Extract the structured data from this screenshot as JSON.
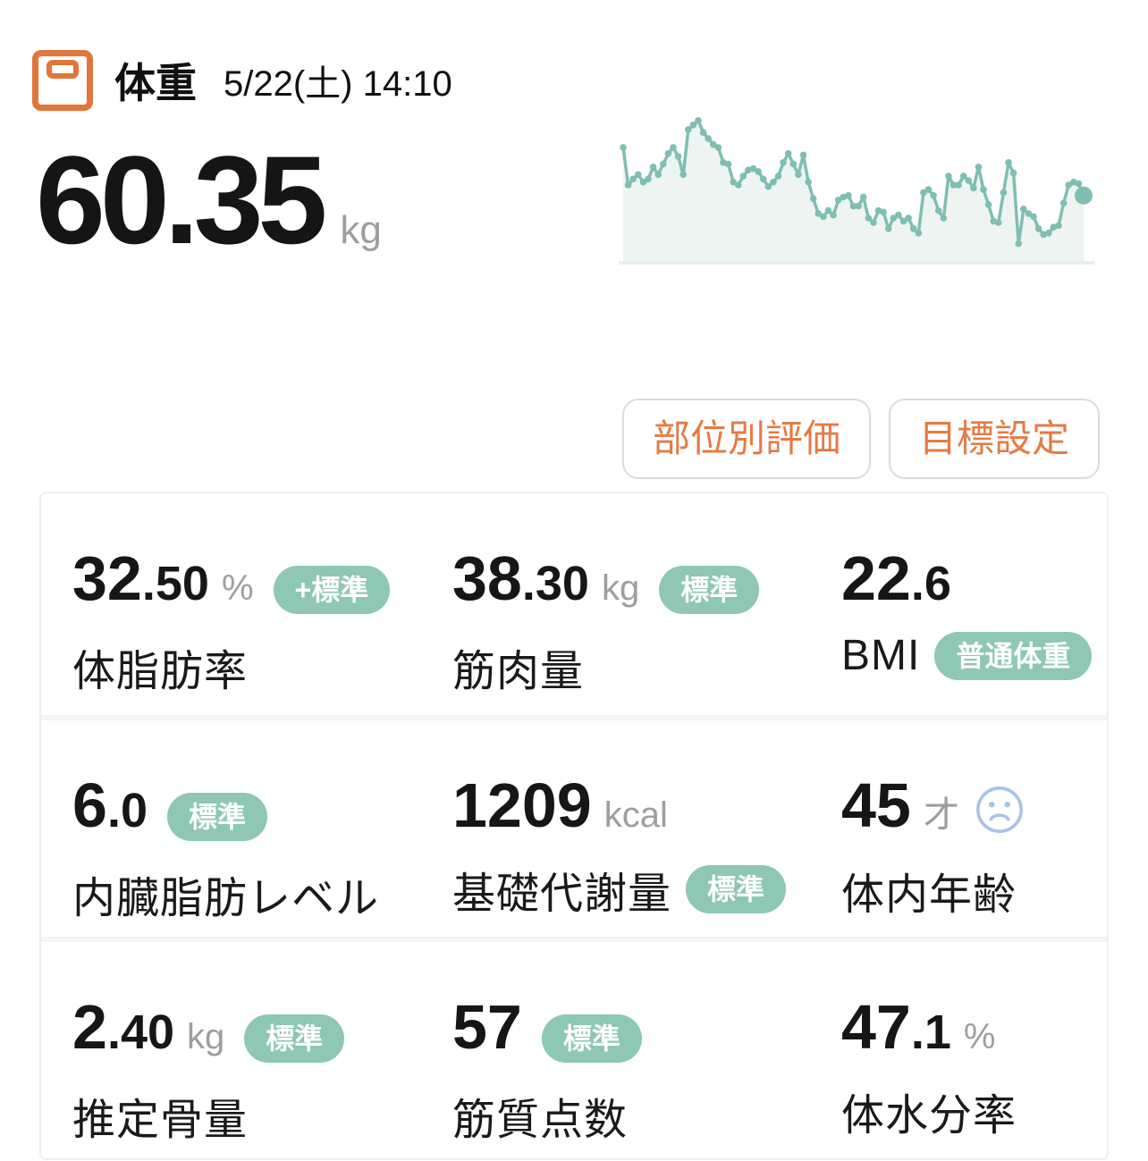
{
  "header": {
    "icon": "scale-icon",
    "title": "体重",
    "datetime": "5/22(土) 14:10"
  },
  "current_weight": {
    "value": "60.35",
    "unit": "kg"
  },
  "actions": {
    "evaluate_by_part": "部位別評価",
    "goal_setting": "目標設定"
  },
  "chart_data": {
    "type": "line",
    "title": "",
    "xlabel": "",
    "ylabel": "",
    "legend": false,
    "grid": false,
    "y_scale": "relative 0-100 (sparkline shown without axes or tick labels)",
    "style": {
      "line_color": "#7fbeb2",
      "fill_color": "#eef4f2",
      "baseline_color": "#e8efec",
      "point_radius": 3.8,
      "last_point_radius": 10
    },
    "values": [
      72,
      47,
      51,
      54,
      49,
      51,
      59,
      54,
      61,
      68,
      72,
      66,
      54,
      84,
      87,
      90,
      82,
      78,
      74,
      72,
      62,
      61,
      49,
      47,
      53,
      57,
      58,
      56,
      51,
      46,
      49,
      53,
      62,
      68,
      61,
      54,
      67,
      49,
      38,
      28,
      26,
      30,
      27,
      37,
      39,
      40,
      33,
      33,
      39,
      25,
      22,
      30,
      29,
      18,
      25,
      27,
      23,
      25,
      18,
      15,
      42,
      44,
      40,
      30,
      25,
      53,
      47,
      47,
      53,
      50,
      45,
      59,
      44,
      34,
      23,
      22,
      42,
      62,
      55,
      8,
      31,
      28,
      26,
      18,
      14,
      15,
      19,
      20,
      35,
      47,
      49,
      48,
      40
    ]
  },
  "metrics": [
    {
      "int": "32",
      "dec": ".50",
      "unit": "%",
      "badge": "+標準",
      "badge_on": "value",
      "icon": null,
      "label": "体脂肪率"
    },
    {
      "int": "38",
      "dec": ".30",
      "unit": "kg",
      "badge": "標準",
      "badge_on": "value",
      "icon": null,
      "label": "筋肉量"
    },
    {
      "int": "22",
      "dec": ".6",
      "unit": "",
      "badge": "普通体重",
      "badge_on": "label",
      "icon": null,
      "label": "BMI"
    },
    {
      "int": "6",
      "dec": ".0",
      "unit": "",
      "badge": "標準",
      "badge_on": "value",
      "icon": null,
      "label": "内臓脂肪レベル"
    },
    {
      "int": "1209",
      "dec": "",
      "unit": "kcal",
      "badge": "標準",
      "badge_on": "label",
      "icon": null,
      "label": "基礎代謝量"
    },
    {
      "int": "45",
      "dec": "",
      "unit": "才",
      "badge": "",
      "badge_on": null,
      "icon": "sad-face-icon",
      "label": "体内年齢"
    },
    {
      "int": "2",
      "dec": ".40",
      "unit": "kg",
      "badge": "標準",
      "badge_on": "value",
      "icon": null,
      "label": "推定骨量"
    },
    {
      "int": "57",
      "dec": "",
      "unit": "",
      "badge": "標準",
      "badge_on": "value",
      "icon": null,
      "label": "筋質点数"
    },
    {
      "int": "47",
      "dec": ".1",
      "unit": "%",
      "badge": "",
      "badge_on": null,
      "icon": null,
      "label": "体水分率"
    }
  ],
  "colors": {
    "accent_orange": "#e57a45",
    "icon_orange": "#e0763c",
    "badge_teal": "#8ec7b3",
    "chart_line_teal": "#7fbeb2",
    "chart_fill": "#eef4f2",
    "unit_gray": "#9e9e9e",
    "sad_face_blue": "#a9c3e6",
    "divider_gray": "#f3f4f4"
  }
}
